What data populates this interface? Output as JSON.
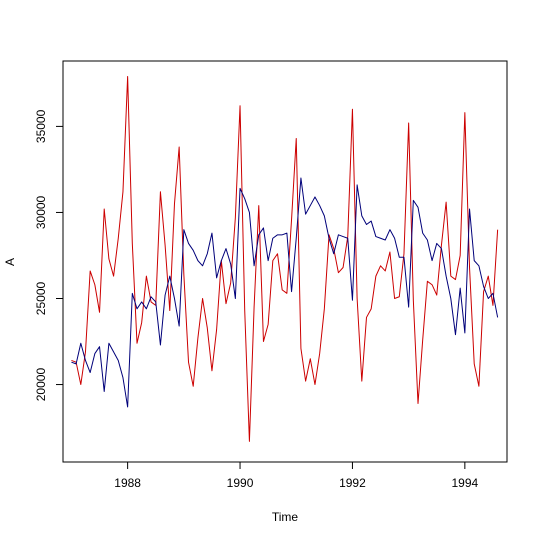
{
  "chart_data": {
    "type": "line",
    "title": "",
    "xlabel": "Time",
    "ylabel": "A",
    "xlim": [
      1986.85,
      1994.75
    ],
    "ylim": [
      15500,
      38800
    ],
    "x_ticks": [
      1988,
      1990,
      1992,
      1994
    ],
    "x_tick_labels": [
      "1988",
      "1990",
      "1992",
      "1994"
    ],
    "y_ticks": [
      20000,
      25000,
      30000,
      35000
    ],
    "y_tick_labels": [
      "20000",
      "25000",
      "30000",
      "35000"
    ],
    "grid": false,
    "legend": "none",
    "x": [
      1987.0,
      1987.0833,
      1987.1667,
      1987.25,
      1987.3333,
      1987.4167,
      1987.5,
      1987.5833,
      1987.6667,
      1987.75,
      1987.8333,
      1987.9167,
      1988.0,
      1988.0833,
      1988.1667,
      1988.25,
      1988.3333,
      1988.4167,
      1988.5,
      1988.5833,
      1988.6667,
      1988.75,
      1988.8333,
      1988.9167,
      1989.0,
      1989.0833,
      1989.1667,
      1989.25,
      1989.3333,
      1989.4167,
      1989.5,
      1989.5833,
      1989.6667,
      1989.75,
      1989.8333,
      1989.9167,
      1990.0,
      1990.0833,
      1990.1667,
      1990.25,
      1990.3333,
      1990.4167,
      1990.5,
      1990.5833,
      1990.6667,
      1990.75,
      1990.8333,
      1990.9167,
      1991.0,
      1991.0833,
      1991.1667,
      1991.25,
      1991.3333,
      1991.4167,
      1991.5,
      1991.5833,
      1991.6667,
      1991.75,
      1991.8333,
      1991.9167,
      1992.0,
      1992.0833,
      1992.1667,
      1992.25,
      1992.3333,
      1992.4167,
      1992.5,
      1992.5833,
      1992.6667,
      1992.75,
      1992.8333,
      1992.9167,
      1993.0,
      1993.0833,
      1993.1667,
      1993.25,
      1993.3333,
      1993.4167,
      1993.5,
      1993.5833,
      1993.6667,
      1993.75,
      1993.8333,
      1993.9167,
      1994.0,
      1994.0833,
      1994.1667,
      1994.25,
      1994.3333,
      1994.4167,
      1994.5,
      1994.5833
    ],
    "series": [
      {
        "color": "#cc0000",
        "values": [
          21400,
          21300,
          20000,
          21900,
          26600,
          25800,
          24200,
          30200,
          27300,
          26300,
          28500,
          31200,
          37900,
          28200,
          22400,
          23600,
          26300,
          24800,
          24600,
          31200,
          28100,
          24300,
          30500,
          33800,
          26400,
          21300,
          19900,
          22700,
          25000,
          23300,
          20800,
          23200,
          27200,
          24700,
          25900,
          29700,
          36200,
          24300,
          16700,
          24500,
          30400,
          22500,
          23500,
          27200,
          27600,
          25500,
          25300,
          29600,
          34300,
          22100,
          20200,
          21500,
          20000,
          21800,
          24400,
          28700,
          27900,
          26500,
          26800,
          28600,
          36000,
          25000,
          20200,
          23900,
          24400,
          26300,
          26900,
          26600,
          27700,
          25000,
          25100,
          27600,
          35200,
          24900,
          18900,
          22600,
          26000,
          25800,
          25200,
          28100,
          30600,
          26300,
          26100,
          27500,
          35800,
          26800,
          21200,
          19900,
          25400,
          26300,
          24600,
          29000
        ]
      },
      {
        "color": "#00007a",
        "values": [
          21300,
          21200,
          22400,
          21400,
          20700,
          21800,
          22200,
          19600,
          22400,
          21900,
          21400,
          20400,
          18700,
          25300,
          24400,
          24800,
          24400,
          25100,
          24800,
          22300,
          25200,
          26300,
          25000,
          23400,
          29000,
          28200,
          27800,
          27200,
          26900,
          27600,
          28800,
          26200,
          27200,
          27900,
          27000,
          25000,
          31400,
          30800,
          30000,
          26900,
          28700,
          29100,
          27200,
          28500,
          28700,
          28700,
          28800,
          25400,
          28500,
          32000,
          29900,
          30400,
          30900,
          30400,
          29800,
          28500,
          27600,
          28700,
          28600,
          28500,
          24900,
          31600,
          29800,
          29300,
          29500,
          28600,
          28500,
          28400,
          29000,
          28500,
          27400,
          27400,
          24500,
          30700,
          30300,
          28800,
          28400,
          27200,
          28200,
          27900,
          26300,
          25000,
          22900,
          25600,
          23000,
          30200,
          27200,
          26900,
          25700,
          25000,
          25300,
          23900
        ]
      }
    ]
  }
}
